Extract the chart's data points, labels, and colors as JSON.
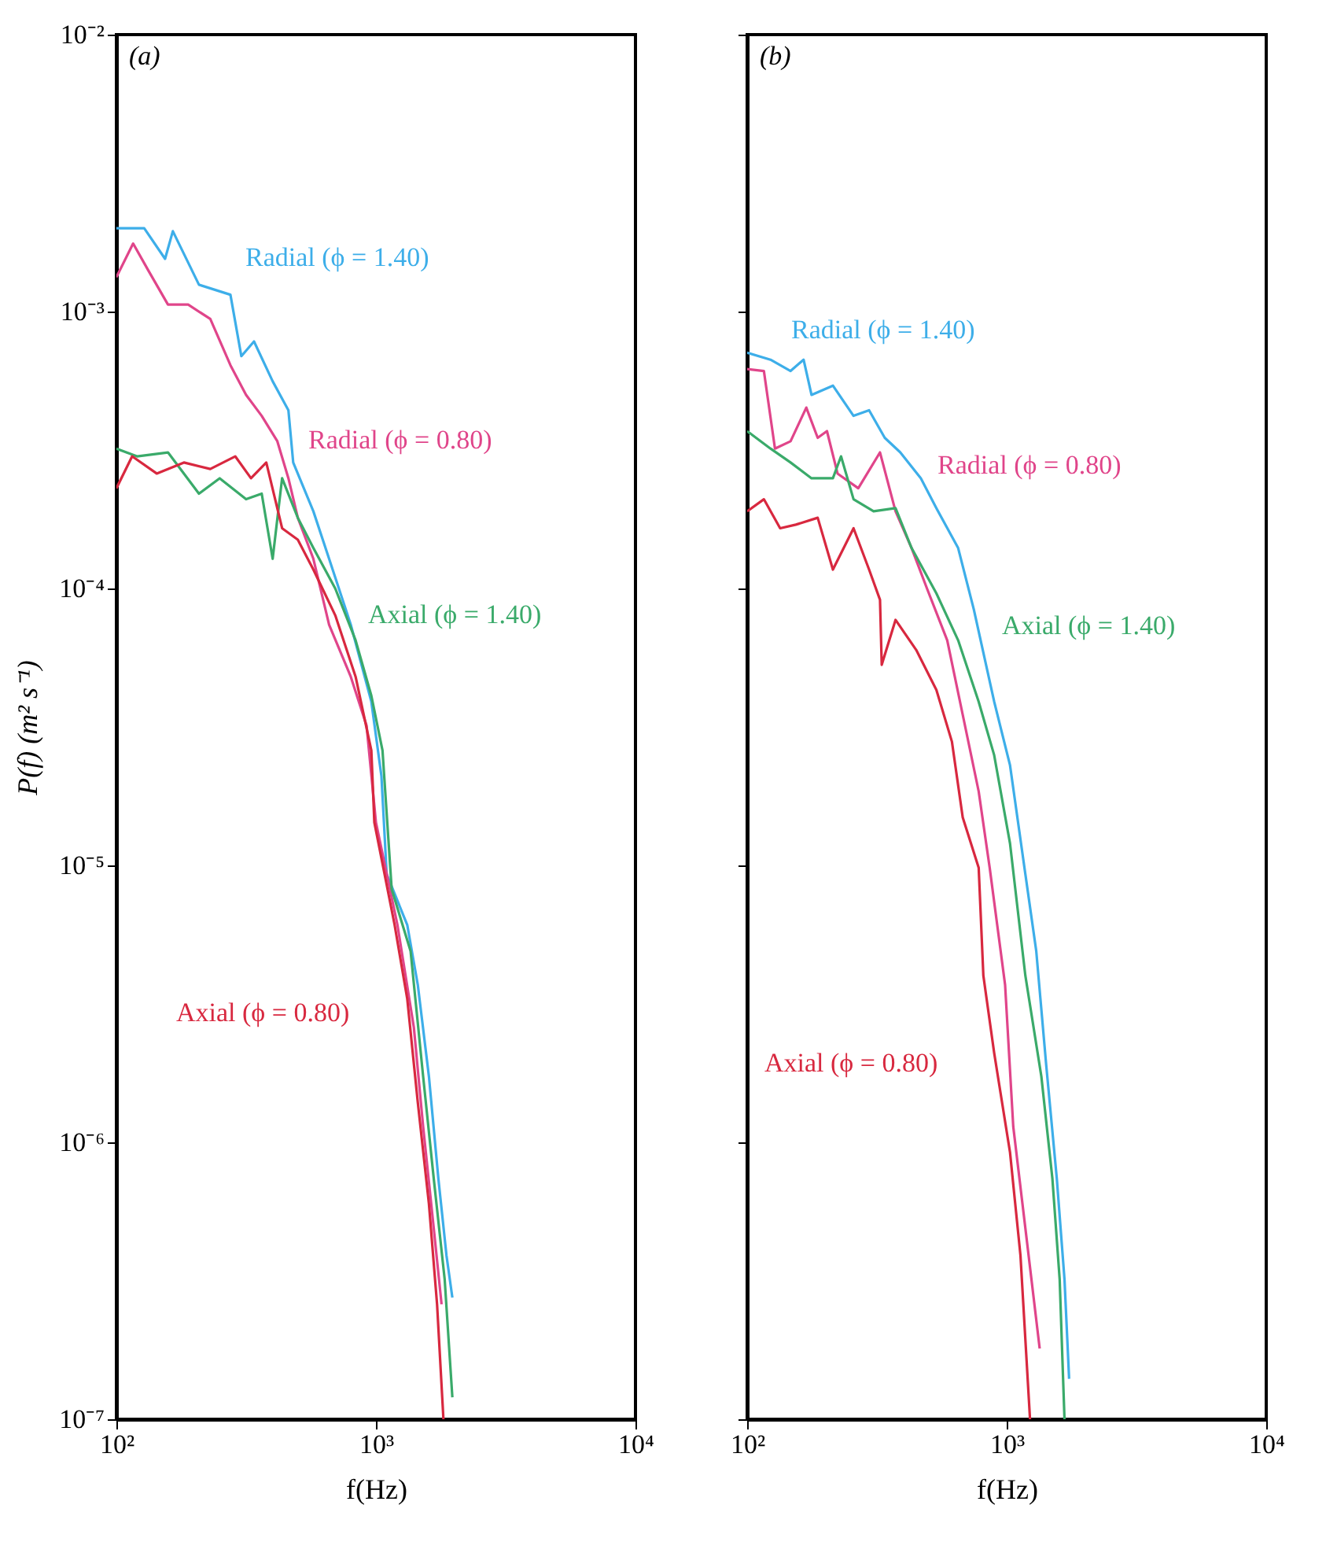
{
  "chart_data": [
    {
      "type": "line",
      "title": "(a)",
      "xlabel": "f(Hz)",
      "ylabel": "P(f) (m² s⁻¹)",
      "log": "xy",
      "grid": false,
      "legend": false,
      "line_style": "solid",
      "marker": "none",
      "xlim": [
        100,
        10000
      ],
      "ylim": [
        1e-07,
        0.01
      ],
      "xticks": [
        {
          "value": 100,
          "label": "10²"
        },
        {
          "value": 1000,
          "label": "10³"
        },
        {
          "value": 10000,
          "label": "10⁴"
        }
      ],
      "yticks": [
        {
          "value": 1e-07,
          "label": "10⁻⁷"
        },
        {
          "value": 1e-06,
          "label": "10⁻⁶"
        },
        {
          "value": 1e-05,
          "label": "10⁻⁵"
        },
        {
          "value": 0.0001,
          "label": "10⁻⁴"
        },
        {
          "value": 0.001,
          "label": "10⁻³"
        },
        {
          "value": 0.01,
          "label": "10⁻²"
        }
      ],
      "series": [
        {
          "name": "Radial (ϕ = 1.40)",
          "color": "#3daee9",
          "x": [
            100,
            128,
            154,
            165,
            208,
            275,
            303,
            339,
            400,
            460,
            480,
            574,
            660,
            800,
            960,
            1050,
            1100,
            1320,
            1450,
            1600,
            1740,
            1870,
            1970
          ],
          "values": [
            0.002,
            0.002,
            0.00155,
            0.00195,
            0.00125,
            0.00115,
            0.00069,
            0.00078,
            0.00056,
            0.00044,
            0.000285,
            0.00019,
            0.000128,
            7.4e-05,
            3.9e-05,
            2.1e-05,
            9.3e-06,
            6.1e-06,
            3.7e-06,
            1.73e-06,
            7.4e-07,
            3.9e-07,
            2.75e-07
          ]
        },
        {
          "name": "Radial (ϕ = 0.80)",
          "color": "#e0458a",
          "x": [
            100,
            116,
            132,
            158,
            189,
            230,
            275,
            316,
            363,
            417,
            460,
            500,
            574,
            660,
            800,
            920,
            1000,
            1210,
            1400,
            1520,
            1670,
            1790
          ],
          "values": [
            0.00133,
            0.00176,
            0.00142,
            0.00106,
            0.00106,
            0.00094,
            0.00064,
            0.0005,
            0.00042,
            0.00034,
            0.00025,
            0.00018,
            0.000128,
            7.4e-05,
            4.8e-05,
            3.2e-05,
            1.43e-05,
            6.1e-06,
            2.6e-06,
            1.14e-06,
            4.9e-07,
            2.6e-07
          ]
        },
        {
          "name": "Axial (ϕ = 1.40)",
          "color": "#3aaa6a",
          "x": [
            100,
            120,
            158,
            208,
            250,
            316,
            363,
            400,
            435,
            500,
            574,
            697,
            835,
            960,
            1060,
            1150,
            1360,
            1520,
            1670,
            1840,
            1970
          ],
          "values": [
            0.00032,
            0.0003,
            0.00031,
            0.00022,
            0.00025,
            0.00021,
            0.00022,
            0.000128,
            0.00025,
            0.00018,
            0.00014,
            0.0001,
            6.5e-05,
            4.1e-05,
            2.6e-05,
            8.2e-06,
            4.9e-06,
            1.73e-06,
            7.4e-07,
            3.2e-07,
            1.2e-07
          ]
        },
        {
          "name": "Axial (ϕ = 0.80)",
          "color": "#d8283f",
          "x": [
            100,
            115,
            143,
            182,
            230,
            287,
            330,
            378,
            435,
            500,
            574,
            697,
            835,
            960,
            986,
            1180,
            1320,
            1450,
            1600,
            1720,
            1820
          ],
          "values": [
            0.00023,
            0.0003,
            0.00026,
            0.000285,
            0.00027,
            0.0003,
            0.00025,
            0.000285,
            0.000165,
            0.00015,
            0.000117,
            8e-05,
            4.8e-05,
            2.6e-05,
            1.43e-05,
            6.1e-06,
            3.3e-06,
            1.39e-06,
            6e-07,
            2.6e-07,
            1e-07
          ]
        }
      ]
    },
    {
      "type": "line",
      "title": "(b)",
      "xlabel": "f(Hz)",
      "log": "xy",
      "grid": false,
      "legend": false,
      "line_style": "solid",
      "marker": "none",
      "tick_labels": "x",
      "xlim": [
        100,
        10000
      ],
      "ylim": [
        1e-07,
        0.01
      ],
      "xticks": [
        {
          "value": 100,
          "label": "10²"
        },
        {
          "value": 1000,
          "label": "10³"
        },
        {
          "value": 10000,
          "label": "10⁴"
        }
      ],
      "yticks": [
        {
          "value": 1e-07,
          "label": null
        },
        {
          "value": 1e-06,
          "label": null
        },
        {
          "value": 1e-05,
          "label": null
        },
        {
          "value": 0.0001,
          "label": null
        },
        {
          "value": 0.001,
          "label": null
        },
        {
          "value": 0.01,
          "label": null
        }
      ],
      "series": [
        {
          "name": "Radial (ϕ = 1.40)",
          "color": "#3daee9",
          "x": [
            100,
            123,
            147,
            165,
            177,
            214,
            257,
            295,
            339,
            389,
            467,
            536,
            650,
            747,
            895,
            1030,
            1180,
            1300,
            1420,
            1560,
            1670,
            1740
          ],
          "values": [
            0.00071,
            0.00067,
            0.00061,
            0.00067,
            0.0005,
            0.00054,
            0.00042,
            0.00044,
            0.00035,
            0.00031,
            0.00025,
            0.000195,
            0.00014,
            8.4e-05,
            3.9e-05,
            2.3e-05,
            9.3e-06,
            4.9e-06,
            1.9e-06,
            7.4e-07,
            3.2e-07,
            1.4e-07
          ]
        },
        {
          "name": "Radial (ϕ = 0.80)",
          "color": "#e0458a",
          "x": [
            100,
            116,
            128,
            147,
            169,
            187,
            203,
            223,
            268,
            325,
            373,
            430,
            493,
            590,
            677,
            780,
            860,
            986,
            1060,
            1180,
            1340
          ],
          "values": [
            0.00062,
            0.00061,
            0.00032,
            0.00034,
            0.00045,
            0.00035,
            0.00037,
            0.00026,
            0.00023,
            0.00031,
            0.00019,
            0.00014,
            0.0001,
            6.5e-05,
            3.5e-05,
            1.85e-05,
            9.8e-06,
            3.7e-06,
            1.14e-06,
            4.9e-07,
            1.8e-07
          ]
        },
        {
          "name": "Axial (ϕ = 1.40)",
          "color": "#3aaa6a",
          "x": [
            100,
            123,
            147,
            177,
            214,
            230,
            257,
            307,
            373,
            430,
            536,
            650,
            780,
            895,
            1030,
            1180,
            1360,
            1500,
            1600,
            1670
          ],
          "values": [
            0.00037,
            0.00032,
            0.000285,
            0.00025,
            0.00025,
            0.0003,
            0.00021,
            0.00019,
            0.000195,
            0.00014,
            9.6e-05,
            6.5e-05,
            3.9e-05,
            2.5e-05,
            1.2e-05,
            4e-06,
            1.73e-06,
            7.4e-07,
            3.2e-07,
            1e-07
          ]
        },
        {
          "name": "Axial (ϕ = 0.80)",
          "color": "#d8283f",
          "x": [
            100,
            116,
            134,
            154,
            187,
            214,
            257,
            295,
            325,
            330,
            373,
            448,
            536,
            615,
            677,
            780,
            813,
            895,
            1030,
            1130,
            1230
          ],
          "values": [
            0.00019,
            0.00021,
            0.000165,
            0.00017,
            0.00018,
            0.000117,
            0.000165,
            0.000117,
            9.1e-05,
            5.3e-05,
            7.7e-05,
            6e-05,
            4.3e-05,
            2.8e-05,
            1.49e-05,
            9.8e-06,
            4e-06,
            2.1e-06,
            9.2e-07,
            3.9e-07,
            1e-07
          ]
        }
      ]
    }
  ]
}
